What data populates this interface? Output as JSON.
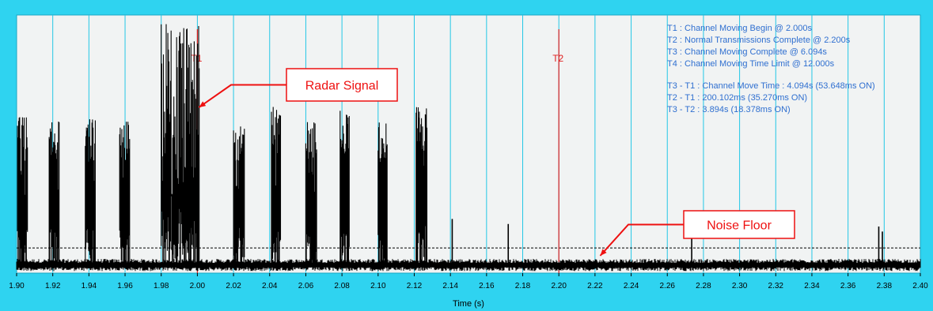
{
  "chart_data": {
    "type": "line",
    "title": "",
    "xlabel": "Time (s)",
    "ylabel": "",
    "xlim": [
      1.9,
      2.4
    ],
    "x_ticks": [
      "1.90",
      "1.92",
      "1.94",
      "1.96",
      "1.98",
      "2.00",
      "2.02",
      "2.04",
      "2.06",
      "2.08",
      "2.10",
      "2.12",
      "2.14",
      "2.16",
      "2.18",
      "2.20",
      "2.22",
      "2.24",
      "2.26",
      "2.28",
      "2.30",
      "2.32",
      "2.34",
      "2.36",
      "2.38",
      "2.40"
    ],
    "grid": true,
    "markers": [
      {
        "label": "T1",
        "x": 2.0
      },
      {
        "label": "T2",
        "x": 2.2
      }
    ],
    "info_lines": [
      "T1 : Channel Moving Begin @ 2.000s",
      "T2 : Normal Transmissions Complete @ 2.200s",
      "T3 : Channel Moving Complete @ 6.094s",
      "T4 : Channel Moving Time Limit @ 12.000s",
      "",
      "T3 - T1 : Channel Move Time : 4.094s (53.648ms ON)",
      "T2 - T1 : 200.102ms (35.270ms ON)",
      "T3 - T2 : 3.894s (18.378ms ON)"
    ],
    "annotations": [
      {
        "text": "Radar Signal",
        "target_x": 2.0
      },
      {
        "text": "Noise Floor",
        "target_x": 2.222
      }
    ],
    "bursts": [
      {
        "start": 1.9005,
        "end": 1.906,
        "amp": 0.6
      },
      {
        "start": 1.918,
        "end": 1.9235,
        "amp": 0.58
      },
      {
        "start": 1.938,
        "end": 1.9435,
        "amp": 0.59
      },
      {
        "start": 1.957,
        "end": 1.9625,
        "amp": 0.58
      },
      {
        "start": 1.98,
        "end": 2.001,
        "amp": 0.97
      },
      {
        "start": 2.02,
        "end": 2.026,
        "amp": 0.58
      },
      {
        "start": 2.041,
        "end": 2.046,
        "amp": 0.64
      },
      {
        "start": 2.06,
        "end": 2.066,
        "amp": 0.59
      },
      {
        "start": 2.079,
        "end": 2.084,
        "amp": 0.62
      },
      {
        "start": 2.1,
        "end": 2.105,
        "amp": 0.58
      },
      {
        "start": 2.121,
        "end": 2.127,
        "amp": 0.64
      }
    ],
    "spikes": [
      {
        "x": 2.141,
        "amp": 0.19
      },
      {
        "x": 2.172,
        "amp": 0.17
      },
      {
        "x": 2.2735,
        "amp": 0.12
      },
      {
        "x": 2.377,
        "amp": 0.16
      },
      {
        "x": 2.379,
        "amp": 0.14
      }
    ],
    "noise_floor_level": 0.06,
    "threshold_level": 0.075,
    "colors": {
      "frame": "#2fd3f0",
      "plot_bg": "#f1f3f3",
      "grid": "#23c7e6",
      "marker": "#e02020",
      "signal": "#000000",
      "info_text": "#2f6fd0",
      "callout": "#ee1010"
    }
  }
}
